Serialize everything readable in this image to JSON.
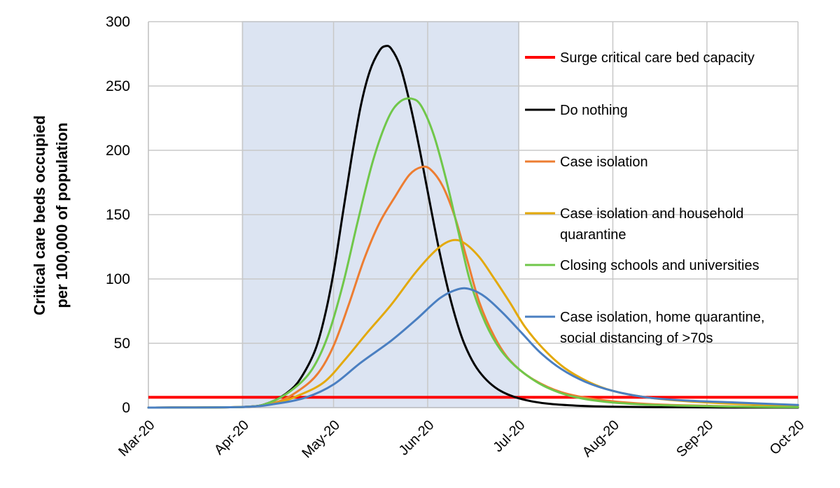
{
  "chart_data": {
    "type": "line",
    "title": "",
    "xlabel": "",
    "ylabel_lines": [
      "Critical care beds occupied",
      "per 100,000 of population"
    ],
    "ylim": [
      0,
      300
    ],
    "yticks": [
      0,
      50,
      100,
      150,
      200,
      250,
      300
    ],
    "x_categories": [
      "Mar-20",
      "Apr-20",
      "May-20",
      "Jun-20",
      "Jul-20",
      "Aug-20",
      "Sep-20",
      "Oct-20"
    ],
    "x_days_per_month": [
      31,
      30,
      31,
      30,
      31,
      31,
      30
    ],
    "grid": true,
    "legend_position": "right",
    "shaded_period": {
      "start": "2020-04-01",
      "end": "2020-07-01",
      "color": "#dce4f2"
    },
    "capacity_line": {
      "name": "Surge critical care bed capacity",
      "value": 8,
      "color": "#ff0000"
    },
    "series": [
      {
        "name": "Do nothing",
        "color": "#000000",
        "points": [
          [
            "2020-03-01",
            0
          ],
          [
            "2020-04-01",
            0.5
          ],
          [
            "2020-04-10",
            4
          ],
          [
            "2020-04-17",
            14
          ],
          [
            "2020-04-21",
            26
          ],
          [
            "2020-04-25",
            45
          ],
          [
            "2020-04-28",
            70
          ],
          [
            "2020-05-01",
            105
          ],
          [
            "2020-05-04",
            150
          ],
          [
            "2020-05-07",
            195
          ],
          [
            "2020-05-10",
            235
          ],
          [
            "2020-05-13",
            262
          ],
          [
            "2020-05-16",
            277
          ],
          [
            "2020-05-18",
            281
          ],
          [
            "2020-05-20",
            279
          ],
          [
            "2020-05-23",
            265
          ],
          [
            "2020-05-26",
            238
          ],
          [
            "2020-05-29",
            205
          ],
          [
            "2020-06-01",
            168
          ],
          [
            "2020-06-05",
            120
          ],
          [
            "2020-06-09",
            80
          ],
          [
            "2020-06-13",
            50
          ],
          [
            "2020-06-18",
            28
          ],
          [
            "2020-06-25",
            13
          ],
          [
            "2020-07-05",
            5
          ],
          [
            "2020-07-20",
            1.5
          ],
          [
            "2020-08-15",
            0.3
          ],
          [
            "2020-10-01",
            0
          ]
        ]
      },
      {
        "name": "Case isolation",
        "color": "#ed7d31",
        "points": [
          [
            "2020-03-01",
            0
          ],
          [
            "2020-04-01",
            0.5
          ],
          [
            "2020-04-12",
            4
          ],
          [
            "2020-04-20",
            14
          ],
          [
            "2020-04-26",
            27
          ],
          [
            "2020-05-01",
            48
          ],
          [
            "2020-05-06",
            80
          ],
          [
            "2020-05-11",
            115
          ],
          [
            "2020-05-16",
            143
          ],
          [
            "2020-05-21",
            163
          ],
          [
            "2020-05-26",
            181
          ],
          [
            "2020-05-30",
            187
          ],
          [
            "2020-06-02",
            185
          ],
          [
            "2020-06-06",
            172
          ],
          [
            "2020-06-10",
            148
          ],
          [
            "2020-06-14",
            115
          ],
          [
            "2020-06-18",
            82
          ],
          [
            "2020-06-23",
            55
          ],
          [
            "2020-06-28",
            37
          ],
          [
            "2020-07-05",
            23
          ],
          [
            "2020-07-15",
            12
          ],
          [
            "2020-07-28",
            6
          ],
          [
            "2020-08-15",
            2.5
          ],
          [
            "2020-09-10",
            1
          ],
          [
            "2020-10-01",
            0.5
          ]
        ]
      },
      {
        "name": "Case isolation and household quarantine",
        "color": "#e3a90c",
        "points": [
          [
            "2020-03-01",
            0
          ],
          [
            "2020-04-01",
            0.5
          ],
          [
            "2020-04-12",
            3.5
          ],
          [
            "2020-04-20",
            10
          ],
          [
            "2020-04-28",
            20
          ],
          [
            "2020-05-05",
            38
          ],
          [
            "2020-05-12",
            58
          ],
          [
            "2020-05-20",
            80
          ],
          [
            "2020-05-28",
            105
          ],
          [
            "2020-06-04",
            123
          ],
          [
            "2020-06-09",
            130
          ],
          [
            "2020-06-13",
            128
          ],
          [
            "2020-06-18",
            117
          ],
          [
            "2020-06-23",
            100
          ],
          [
            "2020-06-28",
            82
          ],
          [
            "2020-07-03",
            63
          ],
          [
            "2020-07-09",
            46
          ],
          [
            "2020-07-16",
            31
          ],
          [
            "2020-07-24",
            20
          ],
          [
            "2020-08-01",
            13
          ],
          [
            "2020-08-12",
            8
          ],
          [
            "2020-08-25",
            5
          ],
          [
            "2020-09-10",
            3
          ],
          [
            "2020-10-01",
            1.5
          ]
        ]
      },
      {
        "name": "Closing schools and universities",
        "color": "#70c74a",
        "points": [
          [
            "2020-03-01",
            0
          ],
          [
            "2020-04-01",
            0.5
          ],
          [
            "2020-04-10",
            4
          ],
          [
            "2020-04-18",
            15
          ],
          [
            "2020-04-24",
            30
          ],
          [
            "2020-04-29",
            55
          ],
          [
            "2020-05-04",
            95
          ],
          [
            "2020-05-09",
            145
          ],
          [
            "2020-05-14",
            192
          ],
          [
            "2020-05-19",
            225
          ],
          [
            "2020-05-23",
            238
          ],
          [
            "2020-05-27",
            240
          ],
          [
            "2020-05-30",
            234
          ],
          [
            "2020-06-03",
            212
          ],
          [
            "2020-06-07",
            178
          ],
          [
            "2020-06-11",
            138
          ],
          [
            "2020-06-15",
            98
          ],
          [
            "2020-06-20",
            66
          ],
          [
            "2020-06-25",
            45
          ],
          [
            "2020-07-01",
            30
          ],
          [
            "2020-07-10",
            16
          ],
          [
            "2020-07-22",
            7
          ],
          [
            "2020-08-10",
            2.5
          ],
          [
            "2020-09-10",
            0.8
          ],
          [
            "2020-10-01",
            0.3
          ]
        ]
      },
      {
        "name": "Case isolation, home quarantine, social distancing of >70s",
        "color": "#4a7fc1",
        "points": [
          [
            "2020-03-01",
            0
          ],
          [
            "2020-04-01",
            0.5
          ],
          [
            "2020-04-12",
            3
          ],
          [
            "2020-04-22",
            8
          ],
          [
            "2020-05-01",
            18
          ],
          [
            "2020-05-10",
            35
          ],
          [
            "2020-05-20",
            52
          ],
          [
            "2020-05-28",
            68
          ],
          [
            "2020-06-05",
            85
          ],
          [
            "2020-06-11",
            92
          ],
          [
            "2020-06-15",
            92
          ],
          [
            "2020-06-20",
            86
          ],
          [
            "2020-06-26",
            73
          ],
          [
            "2020-07-02",
            58
          ],
          [
            "2020-07-08",
            43
          ],
          [
            "2020-07-15",
            30
          ],
          [
            "2020-07-23",
            20
          ],
          [
            "2020-08-01",
            13
          ],
          [
            "2020-08-12",
            8
          ],
          [
            "2020-08-25",
            5.5
          ],
          [
            "2020-09-10",
            4
          ],
          [
            "2020-10-01",
            2
          ]
        ]
      }
    ]
  }
}
